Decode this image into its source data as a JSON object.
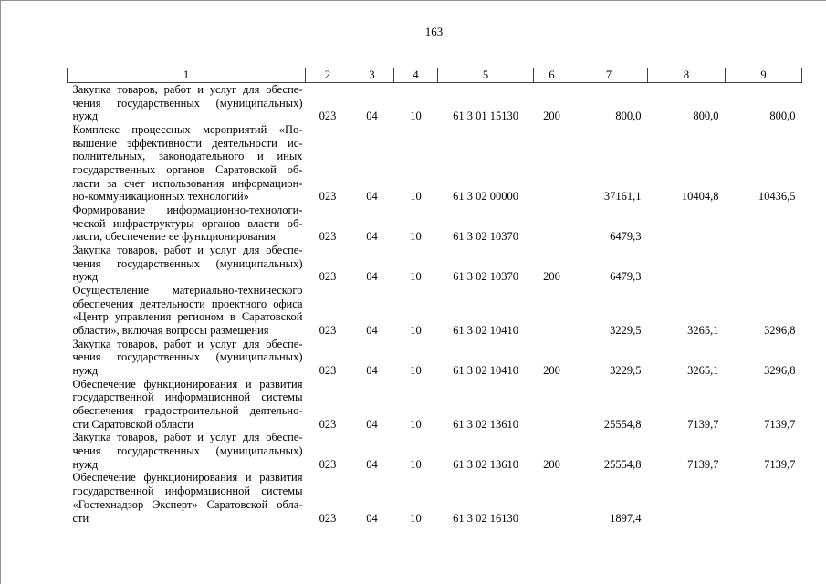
{
  "page": {
    "number": "163"
  },
  "table": {
    "headers": [
      "1",
      "2",
      "3",
      "4",
      "5",
      "6",
      "7",
      "8",
      "9"
    ],
    "rows": [
      {
        "desc_lines": [
          "Закупка товаров, работ и услуг для обеспе-",
          "чения государственных (муниципальных)",
          "нужд"
        ],
        "values": [
          "023",
          "04",
          "10",
          "61 3 01 15130",
          "200",
          "800,0",
          "800,0",
          "800,0"
        ]
      },
      {
        "desc_lines": [
          "Комплекс процессных мероприятий «По-",
          "вышение эффективности деятельности ис-",
          "полнительных, законодательного и иных",
          "государственных органов Саратовской об-",
          "ласти за счет использования информацион-",
          "но-коммуникационных технологий»"
        ],
        "values": [
          "023",
          "04",
          "10",
          "61 3 02 00000",
          "",
          "37161,1",
          "10404,8",
          "10436,5"
        ]
      },
      {
        "desc_lines": [
          "Формирование информационно-технологи-",
          "ческой инфраструктуры органов власти об-",
          "ласти, обеспечение ее функционирования"
        ],
        "values": [
          "023",
          "04",
          "10",
          "61 3 02 10370",
          "",
          "6479,3",
          "",
          ""
        ]
      },
      {
        "desc_lines": [
          "Закупка товаров, работ и услуг для обеспе-",
          "чения государственных (муниципальных)",
          "нужд"
        ],
        "values": [
          "023",
          "04",
          "10",
          "61 3 02 10370",
          "200",
          "6479,3",
          "",
          ""
        ]
      },
      {
        "desc_lines": [
          "Осуществление материально-технического",
          "обеспечения деятельности проектного офиса",
          "«Центр управления регионом в Саратовской",
          "области», включая вопросы размещения"
        ],
        "values": [
          "023",
          "04",
          "10",
          "61 3 02 10410",
          "",
          "3229,5",
          "3265,1",
          "3296,8"
        ]
      },
      {
        "desc_lines": [
          "Закупка товаров, работ и услуг для обеспе-",
          "чения государственных (муниципальных)",
          "нужд"
        ],
        "values": [
          "023",
          "04",
          "10",
          "61 3 02 10410",
          "200",
          "3229,5",
          "3265,1",
          "3296,8"
        ]
      },
      {
        "desc_lines": [
          "Обеспечение функционирования и развития",
          "государственной информационной системы",
          "обеспечения градостроительной деятельно-",
          "сти Саратовской области"
        ],
        "values": [
          "023",
          "04",
          "10",
          "61 3 02 13610",
          "",
          "25554,8",
          "7139,7",
          "7139,7"
        ]
      },
      {
        "desc_lines": [
          "Закупка товаров, работ и услуг для обеспе-",
          "чения государственных (муниципальных)",
          "нужд"
        ],
        "values": [
          "023",
          "04",
          "10",
          "61 3 02 13610",
          "200",
          "25554,8",
          "7139,7",
          "7139,7"
        ]
      },
      {
        "desc_lines": [
          "Обеспечение функционирования и развития",
          "государственной информационной системы",
          "«Гостехнадзор Эксперт» Саратовской обла-",
          "сти"
        ],
        "values": [
          "023",
          "04",
          "10",
          "61 3 02 16130",
          "",
          "1897,4",
          "",
          ""
        ]
      }
    ],
    "colors": {
      "text": "#000000",
      "table_border": "#3d3d3d",
      "page_edge": "#919191",
      "background": "#ffffff"
    }
  }
}
